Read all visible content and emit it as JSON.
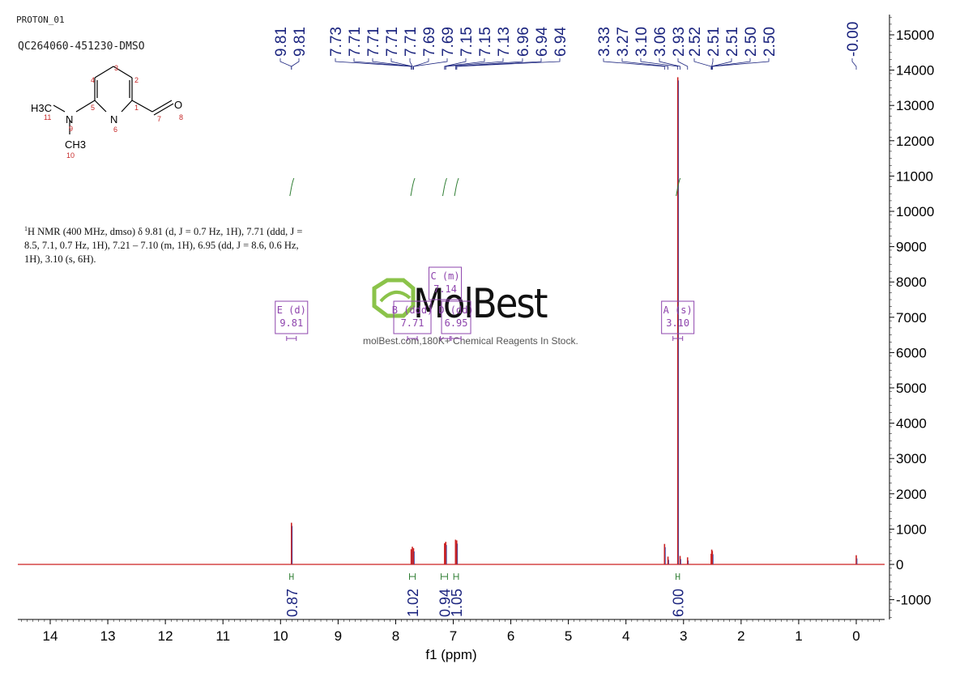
{
  "header": {
    "experiment": "PROTON_01",
    "sample": "QC264060-451230-DMSO"
  },
  "nmr_description": {
    "sup": "1",
    "text": "H NMR (400 MHz, dmso) δ 9.81 (d, J = 0.7 Hz, 1H), 7.71 (ddd, J = 8.5, 7.1, 0.7 Hz, 1H), 7.21 – 7.10 (m, 1H), 6.95 (dd, J = 8.6, 0.6 Hz, 1H), 3.10 (s, 6H)."
  },
  "watermark": {
    "brand": "MolBest",
    "tagline": "molBest.com,180K+ Chemical Reagents In Stock."
  },
  "structure": {
    "labels": {
      "h3c": "H3C",
      "n9": "N",
      "n6": "N",
      "o8": "O",
      "ch3": "CH3"
    },
    "atom_numbers": [
      "1",
      "2",
      "3",
      "4",
      "5",
      "6",
      "7",
      "8",
      "9",
      "10",
      "11"
    ]
  },
  "colors": {
    "spectrum": "#cc2222",
    "peak_labels": "#1a237e",
    "integral": "#2e7d32",
    "multiplet_box": "#8e44ad",
    "axis": "#000000"
  },
  "chart_data": {
    "type": "line",
    "title": "",
    "xlabel": "f1 (ppm)",
    "ylabel": "",
    "x_reversed": true,
    "xlim": [
      14.5,
      -0.5
    ],
    "ylim": [
      -1500,
      15500
    ],
    "x_ticks": [
      14,
      13,
      12,
      11,
      10,
      9,
      8,
      7,
      6,
      5,
      4,
      3,
      2,
      1,
      0
    ],
    "y_ticks": [
      -1000,
      0,
      1000,
      2000,
      3000,
      4000,
      5000,
      6000,
      7000,
      8000,
      9000,
      10000,
      11000,
      12000,
      13000,
      14000,
      15000
    ],
    "peaks": [
      {
        "ppm": 9.81,
        "height": 1180
      },
      {
        "ppm": 7.73,
        "height": 430
      },
      {
        "ppm": 7.71,
        "height": 500
      },
      {
        "ppm": 7.69,
        "height": 460
      },
      {
        "ppm": 7.15,
        "height": 600
      },
      {
        "ppm": 7.13,
        "height": 640
      },
      {
        "ppm": 6.96,
        "height": 700
      },
      {
        "ppm": 6.94,
        "height": 680
      },
      {
        "ppm": 3.33,
        "height": 580
      },
      {
        "ppm": 3.27,
        "height": 220
      },
      {
        "ppm": 3.1,
        "height": 13800
      },
      {
        "ppm": 3.06,
        "height": 240
      },
      {
        "ppm": 2.93,
        "height": 200
      },
      {
        "ppm": 2.52,
        "height": 300
      },
      {
        "ppm": 2.51,
        "height": 420
      },
      {
        "ppm": 2.5,
        "height": 380
      },
      {
        "ppm": 0.0,
        "height": 260
      }
    ],
    "peak_labels": [
      "9.81",
      "9.81",
      "7.73",
      "7.71",
      "7.71",
      "7.71",
      "7.71",
      "7.69",
      "7.69",
      "7.15",
      "7.15",
      "7.13",
      "6.96",
      "6.94",
      "6.94",
      "3.33",
      "3.27",
      "3.10",
      "3.06",
      "2.93",
      "2.52",
      "2.51",
      "2.51",
      "2.50",
      "2.50",
      "-0.00"
    ],
    "integrals": [
      {
        "from": 9.84,
        "to": 9.78,
        "value": "0.87"
      },
      {
        "from": 7.76,
        "to": 7.66,
        "value": "1.02"
      },
      {
        "from": 7.21,
        "to": 7.1,
        "value": "0.94"
      },
      {
        "from": 6.99,
        "to": 6.91,
        "value": "1.05"
      },
      {
        "from": 3.13,
        "to": 3.07,
        "value": "6.00"
      }
    ],
    "multiplets": [
      {
        "letter": "E",
        "type": "(d)",
        "shift": "9.81",
        "ppm": 9.81
      },
      {
        "letter": "B",
        "type": "(ddd)",
        "shift": "7.71",
        "ppm": 7.71
      },
      {
        "letter": "C",
        "type": "(m)",
        "shift": "7.14",
        "ppm": 7.14
      },
      {
        "letter": "D",
        "type": "(dd)",
        "shift": "6.95",
        "ppm": 6.95
      },
      {
        "letter": "A",
        "type": "(s)",
        "shift": "3.10",
        "ppm": 3.1
      }
    ]
  }
}
